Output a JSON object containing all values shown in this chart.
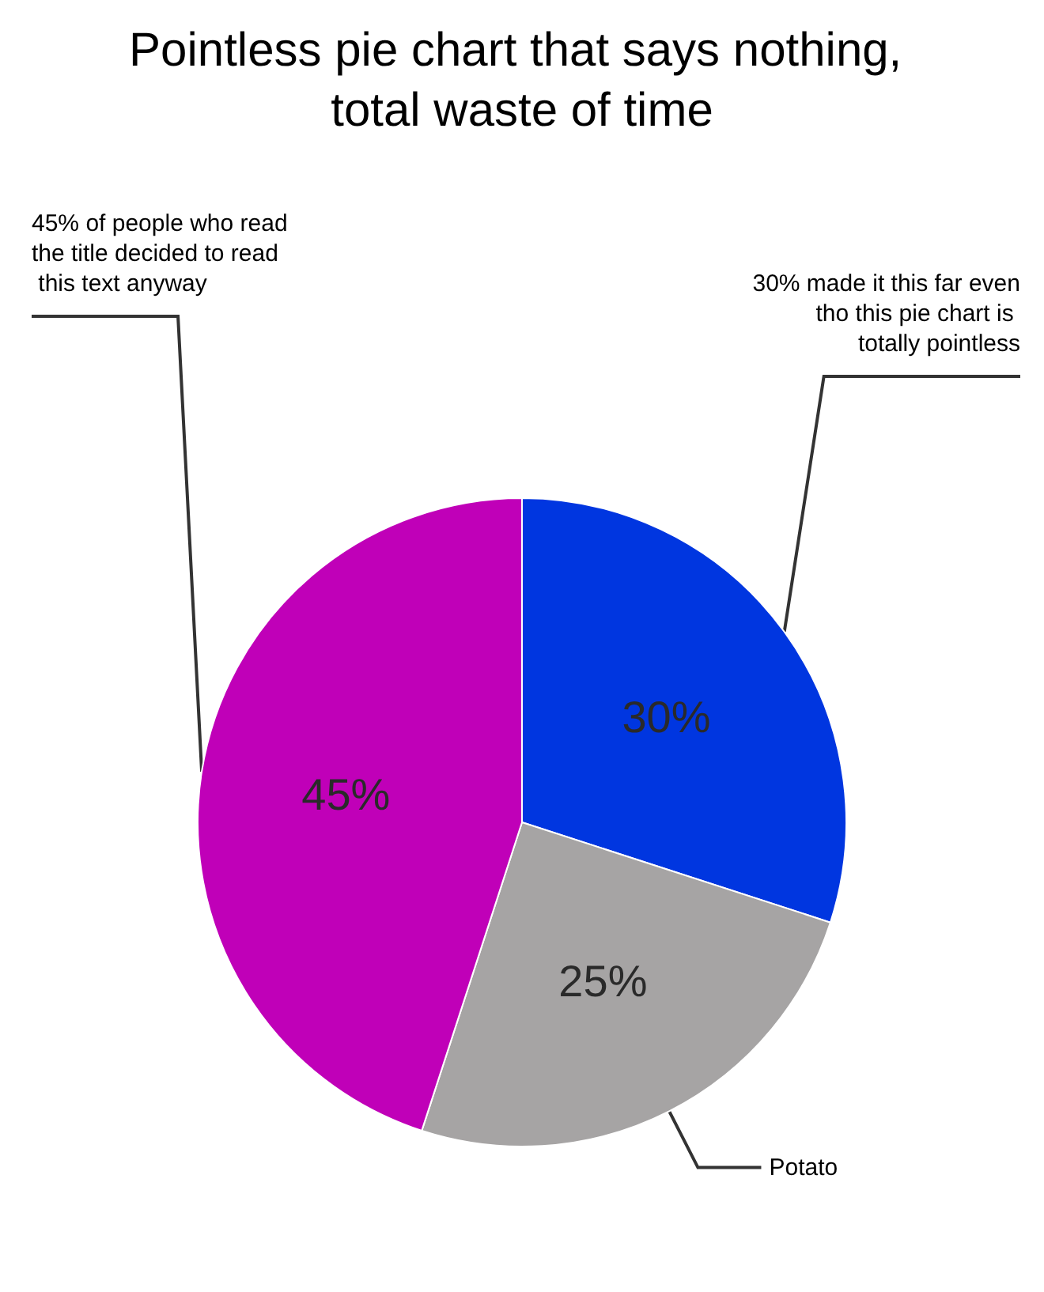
{
  "chart_data": {
    "type": "pie",
    "title": "Pointless pie chart that says nothing, total waste of time",
    "categories": [
      "30% made it this far even tho this pie chart is totally pointless",
      "Potato",
      "45% of people who read the title decided to read this text anyway"
    ],
    "values": [
      30,
      25,
      45
    ],
    "colors": [
      "#0036e0",
      "#a6a4a4",
      "#c000b8"
    ],
    "value_labels": [
      "30%",
      "25%",
      "45%"
    ],
    "legend": false
  }
}
